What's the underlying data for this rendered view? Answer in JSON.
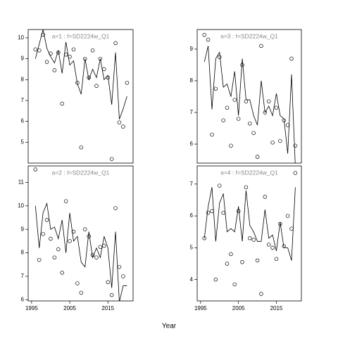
{
  "xlabel": "Year",
  "chart_data": [
    {
      "type": "line",
      "title": "a=1  :  f=SD2224w_Q1",
      "color": "#000000",
      "x": [
        1996,
        1997,
        1998,
        1999,
        2000,
        2001,
        2002,
        2003,
        2004,
        2005,
        2006,
        2007,
        2008,
        2009,
        2010,
        2011,
        2012,
        2013,
        2014,
        2015,
        2016,
        2017,
        2018,
        2019,
        2020
      ],
      "values": [
        9.45,
        9.4,
        10.15,
        8.85,
        9.25,
        8.45,
        9.3,
        6.85,
        9.2,
        9.1,
        9.45,
        7.85,
        4.75,
        9.0,
        8.1,
        9.4,
        7.7,
        9.0,
        8.5,
        8.1,
        4.2,
        9.75,
        5.95,
        5.75,
        7.85
      ],
      "line_values": [
        9.0,
        9.7,
        10.4,
        9.5,
        9.1,
        8.8,
        9.4,
        8.3,
        9.8,
        8.7,
        8.9,
        7.8,
        7.3,
        9.0,
        8.0,
        8.5,
        8.1,
        9.0,
        8.0,
        8.2,
        6.8,
        9.3,
        6.1,
        6.6,
        7.2
      ],
      "xlim": [
        1994.1,
        2021.6
      ],
      "ylim": [
        4.0,
        10.4
      ],
      "yticks": [
        5,
        6,
        7,
        8,
        9,
        10
      ]
    },
    {
      "type": "line",
      "title": "a=3  :  f=SD2224w_Q1",
      "color": "#000000",
      "x": [
        1996,
        1997,
        1998,
        1999,
        2000,
        2001,
        2002,
        2003,
        2004,
        2005,
        2006,
        2007,
        2008,
        2009,
        2010,
        2011,
        2012,
        2013,
        2014,
        2015,
        2016,
        2017,
        2018,
        2019,
        2020
      ],
      "values": [
        9.45,
        9.3,
        6.3,
        7.75,
        8.75,
        6.75,
        7.15,
        5.95,
        7.4,
        6.8,
        8.5,
        7.35,
        6.65,
        6.35,
        5.6,
        9.1,
        7.0,
        7.35,
        6.05,
        7.15,
        6.1,
        6.75,
        6.6,
        8.7,
        5.95
      ],
      "line_values": [
        8.6,
        9.1,
        7.1,
        8.7,
        8.9,
        7.8,
        7.9,
        7.5,
        8.3,
        6.9,
        8.7,
        7.4,
        7.4,
        6.9,
        6.6,
        8.0,
        7.0,
        7.2,
        6.9,
        7.6,
        6.9,
        6.8,
        5.7,
        8.2,
        5.3
      ],
      "xlim": [
        1994.1,
        2021.6
      ],
      "ylim": [
        5.4,
        9.62
      ],
      "yticks": [
        6,
        7,
        8,
        9
      ]
    },
    {
      "type": "line",
      "title": "a=2  :  f=SD2224w_Q1",
      "color": "#000000",
      "x": [
        1996,
        1997,
        1998,
        1999,
        2000,
        2001,
        2002,
        2003,
        2004,
        2005,
        2006,
        2007,
        2008,
        2009,
        2010,
        2011,
        2012,
        2013,
        2014,
        2015,
        2016,
        2017,
        2018,
        2019,
        2020
      ],
      "values": [
        11.55,
        7.7,
        8.8,
        9.4,
        8.6,
        7.8,
        8.15,
        7.15,
        10.2,
        8.5,
        8.9,
        6.7,
        6.3,
        9.0,
        8.7,
        7.9,
        7.8,
        8.25,
        8.3,
        6.75,
        6.2,
        9.9,
        7.4,
        7.0,
        null
      ],
      "line_values": [
        10.0,
        8.2,
        9.7,
        10.1,
        9.0,
        9.1,
        8.6,
        9.4,
        8.0,
        9.7,
        8.5,
        8.7,
        7.6,
        7.4,
        8.9,
        7.8,
        8.2,
        7.8,
        8.7,
        8.2,
        6.5,
        8.9,
        5.9,
        6.6,
        6.6
      ],
      "xlim": [
        1994.1,
        2021.6
      ],
      "ylim": [
        5.95,
        11.7
      ],
      "yticks": [
        6,
        7,
        8,
        9,
        10,
        11
      ],
      "xticks": [
        1995,
        2005,
        2015
      ]
    },
    {
      "type": "line",
      "title": "a=4  :  f=SD2224w_Q1",
      "color": "#000000",
      "x": [
        1996,
        1997,
        1998,
        1999,
        2000,
        2001,
        2002,
        2003,
        2004,
        2005,
        2006,
        2007,
        2008,
        2009,
        2010,
        2011,
        2012,
        2013,
        2014,
        2015,
        2016,
        2017,
        2018,
        2019,
        2020
      ],
      "values": [
        5.3,
        6.1,
        6.15,
        4.0,
        6.95,
        6.1,
        4.5,
        4.8,
        3.85,
        6.15,
        4.55,
        6.9,
        5.3,
        5.25,
        4.6,
        3.55,
        6.6,
        5.1,
        5.0,
        4.65,
        5.75,
        5.05,
        6.0,
        5.6,
        7.35
      ],
      "line_values": [
        5.3,
        6.3,
        6.9,
        5.2,
        6.4,
        6.7,
        5.5,
        5.6,
        5.5,
        6.3,
        5.2,
        6.8,
        5.7,
        5.5,
        5.2,
        5.2,
        6.2,
        5.3,
        5.4,
        4.9,
        5.8,
        5.0,
        5.0,
        4.6,
        6.9
      ],
      "xlim": [
        1994.1,
        2021.6
      ],
      "ylim": [
        3.33,
        7.57
      ],
      "yticks": [
        4,
        5,
        6,
        7
      ],
      "xticks": [
        1995,
        2005,
        2015
      ]
    }
  ]
}
